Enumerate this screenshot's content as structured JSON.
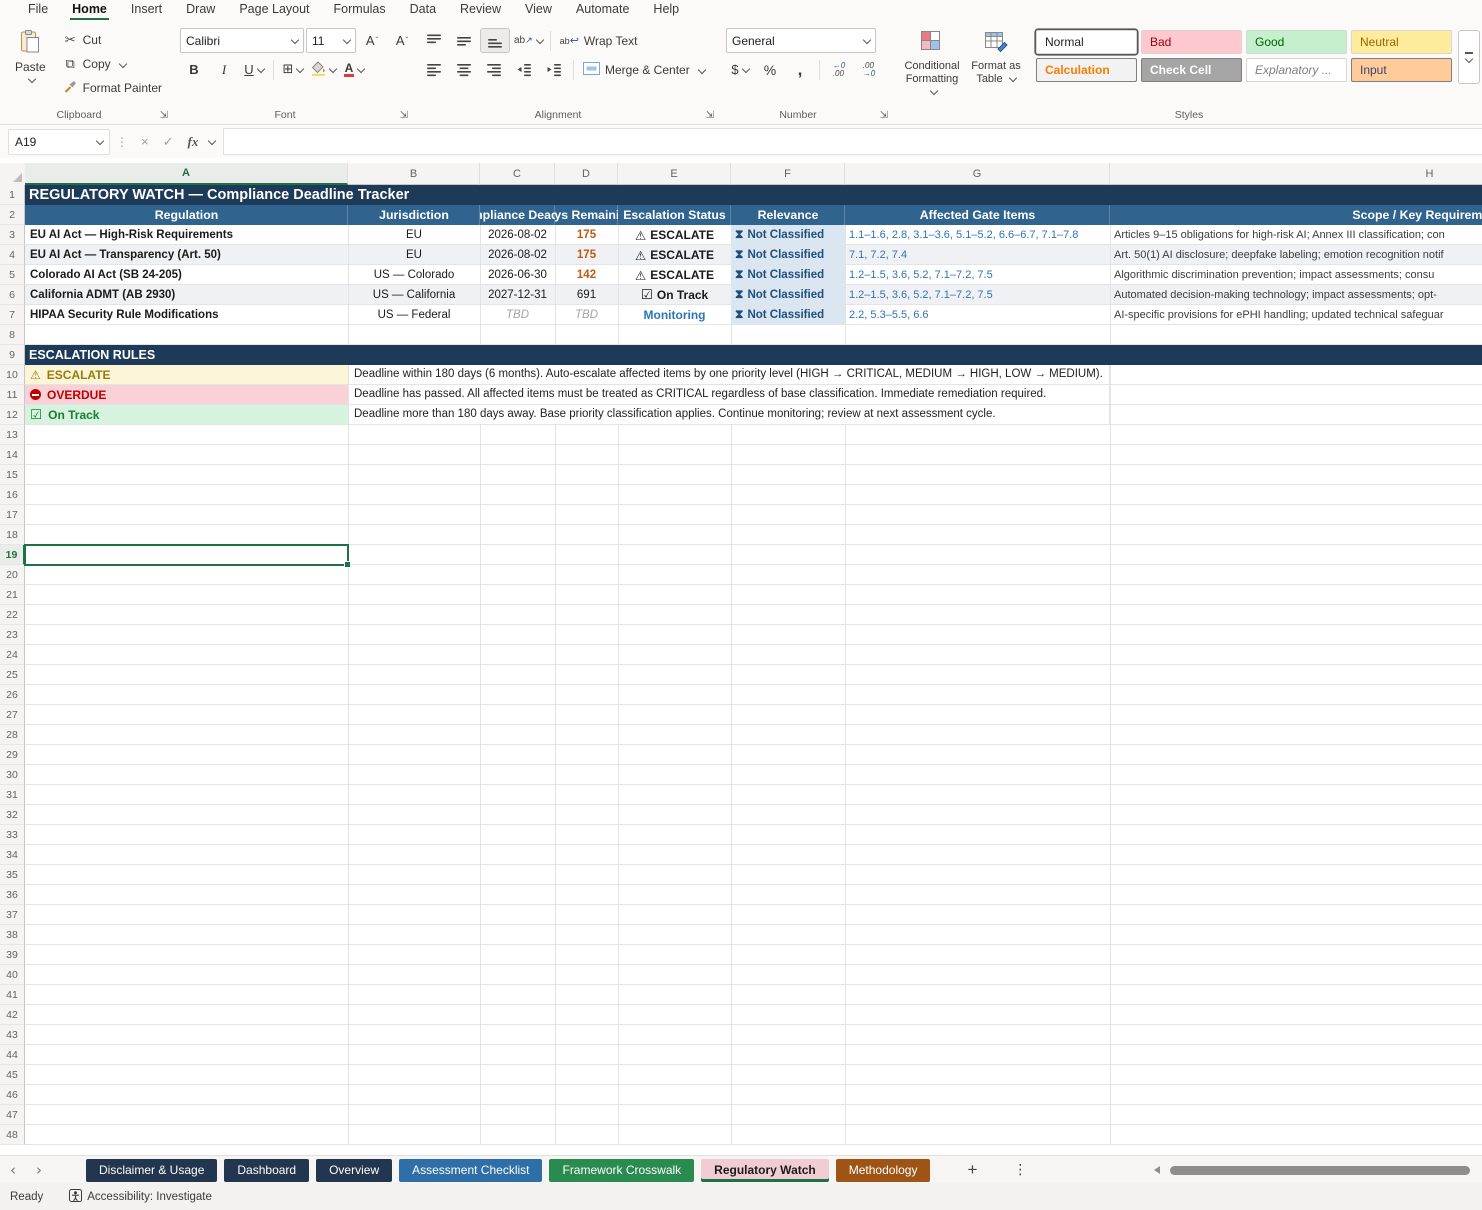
{
  "menu": {
    "items": [
      "File",
      "Home",
      "Insert",
      "Draw",
      "Page Layout",
      "Formulas",
      "Data",
      "Review",
      "View",
      "Automate",
      "Help"
    ],
    "active": "Home"
  },
  "ribbon": {
    "clipboard": {
      "group": "Clipboard",
      "paste": "Paste",
      "cut": "Cut",
      "copy": "Copy",
      "format_painter": "Format Painter"
    },
    "font": {
      "group": "Font",
      "family": "Calibri",
      "size": "11",
      "bold": "B",
      "italic": "I",
      "underline": "U",
      "grow": "A",
      "shrink": "A"
    },
    "alignment": {
      "group": "Alignment",
      "wrap_text": "Wrap Text",
      "merge_center": "Merge & Center",
      "wrap_ab": "ab",
      "orient_ab": "ab"
    },
    "number": {
      "group": "Number",
      "format": "General",
      "dollar": "$",
      "percent": "%",
      "comma": ",",
      "inc_top": "←0",
      "inc_bot": ".00",
      "dec_top": ".00",
      "dec_bot": "→0"
    },
    "styles": {
      "group": "Styles",
      "conditional_line1": "Conditional",
      "conditional_line2": "Formatting",
      "format_table_line1": "Format as",
      "format_table_line2": "Table",
      "gallery": [
        {
          "label": "Normal",
          "bg": "#FFFFFF",
          "fg": "#1F1F1F",
          "selected": true
        },
        {
          "label": "Bad",
          "bg": "#FFC7CE",
          "fg": "#9C0006"
        },
        {
          "label": "Good",
          "bg": "#C6EFCE",
          "fg": "#006100"
        },
        {
          "label": "Neutral",
          "bg": "#FFEB9C",
          "fg": "#9C6500"
        },
        {
          "label": "Calculation",
          "bg": "#F2F2F2",
          "fg": "#FA7D00",
          "bold": true,
          "bordered": true
        },
        {
          "label": "Check Cell",
          "bg": "#A5A5A5",
          "fg": "#FFFFFF",
          "bold": true,
          "bordered": true
        },
        {
          "label": "Explanatory ...",
          "bg": "#FFFFFF",
          "fg": "#7F7F7F",
          "italic": true
        },
        {
          "label": "Input",
          "bg": "#FFCC99",
          "fg": "#3F3F76",
          "bordered": true
        }
      ]
    }
  },
  "formula_bar": {
    "name_box": "A19",
    "formula": "",
    "cancel": "×",
    "enter": "✓",
    "fx": "fx"
  },
  "sheet": {
    "title": "REGULATORY WATCH — Compliance Deadline Tracker",
    "columns": [
      "A",
      "B",
      "C",
      "D",
      "E",
      "F",
      "G",
      "H"
    ],
    "headers": [
      "Regulation",
      "Jurisdiction",
      "Compliance Deadline",
      "Days Remaining",
      "Escalation Status",
      "Relevance",
      "Affected Gate Items",
      "Scope / Key Requirements"
    ],
    "selected_column": "A",
    "selected_row": 19,
    "visible_rows": 48,
    "rows": [
      {
        "regulation": "EU AI Act — High-Risk Requirements",
        "jurisdiction": "EU",
        "deadline": "2026-08-02",
        "days": "175",
        "days_state": "warn",
        "status": "ESCALATE",
        "status_state": "escalate",
        "relevance": "Not Classified",
        "gates": "1.1–1.6, 2.8, 3.1–3.6, 5.1–5.2, 6.6–6.7, 7.1–7.8",
        "scope": "Articles 9–15 obligations for high-risk AI; Annex III classification; con"
      },
      {
        "regulation": "EU AI Act — Transparency (Art. 50)",
        "jurisdiction": "EU",
        "deadline": "2026-08-02",
        "days": "175",
        "days_state": "warn",
        "status": "ESCALATE",
        "status_state": "escalate",
        "relevance": "Not Classified",
        "gates": "7.1, 7.2, 7.4",
        "scope": "Art. 50(1) AI disclosure; deepfake labeling; emotion recognition notif"
      },
      {
        "regulation": "Colorado AI Act (SB 24-205)",
        "jurisdiction": "US — Colorado",
        "deadline": "2026-06-30",
        "days": "142",
        "days_state": "warn",
        "status": "ESCALATE",
        "status_state": "escalate",
        "relevance": "Not Classified",
        "gates": "1.2–1.5, 3.6, 5.2, 7.1–7.2, 7.5",
        "scope": "Algorithmic discrimination prevention; impact assessments; consu"
      },
      {
        "regulation": "California ADMT (AB 2930)",
        "jurisdiction": "US — California",
        "deadline": "2027-12-31",
        "days": "691",
        "days_state": "normal",
        "status": "On Track",
        "status_state": "ontrack",
        "relevance": "Not Classified",
        "gates": "1.2–1.5, 3.6, 5.2, 7.1–7.2, 7.5",
        "scope": "Automated decision-making technology; impact assessments; opt-"
      },
      {
        "regulation": "HIPAA Security Rule Modifications",
        "jurisdiction": "US — Federal",
        "deadline": "TBD",
        "deadline_state": "tbd",
        "days": "TBD",
        "days_state": "tbd",
        "status": "Monitoring",
        "status_state": "monitoring",
        "relevance": "Not Classified",
        "gates": "2.2, 5.3–5.5, 6.6",
        "scope": "AI-specific provisions for ePHI handling; updated technical safeguar"
      }
    ],
    "rules_title": "ESCALATION RULES",
    "rules": [
      {
        "label": "ESCALATE",
        "state": "escalate",
        "desc": "Deadline within 180 days (6 months). Auto-escalate affected items by one priority level (HIGH → CRITICAL, MEDIUM → HIGH, LOW → MEDIUM)."
      },
      {
        "label": "OVERDUE",
        "state": "overdue",
        "desc": "Deadline has passed. All affected items must be treated as CRITICAL regardless of base classification. Immediate remediation required."
      },
      {
        "label": "On Track",
        "state": "ontrack",
        "desc": "Deadline more than 180 days away. Base priority classification applies. Continue monitoring; review at next assessment cycle."
      }
    ]
  },
  "tabs": {
    "items": [
      {
        "label": "Disclaimer & Usage",
        "bg": "#22364F",
        "fg": "#FFFFFF"
      },
      {
        "label": "Dashboard",
        "bg": "#22364F",
        "fg": "#FFFFFF"
      },
      {
        "label": "Overview",
        "bg": "#22364F",
        "fg": "#FFFFFF"
      },
      {
        "label": "Assessment Checklist",
        "bg": "#2F6FA8",
        "fg": "#FFFFFF"
      },
      {
        "label": "Framework Crosswalk",
        "bg": "#2A8B50",
        "fg": "#FFFFFF"
      },
      {
        "label": "Regulatory Watch",
        "bg": "#F2CCD4",
        "fg": "#1B1B1B",
        "active": true
      },
      {
        "label": "Methodology",
        "bg": "#9E5414",
        "fg": "#FFFFFF"
      }
    ]
  },
  "status_bar": {
    "mode": "Ready",
    "accessibility": "Accessibility: Investigate"
  },
  "icons": {
    "scissors": "✂",
    "copy": "⧉",
    "launcher": "⇲",
    "warning": "⚠",
    "check": "☑",
    "hourglass": "⧗",
    "wrap_return": "↩",
    "orientation_arrow": "↗",
    "borders": "⊞",
    "kebab": "⋮",
    "plus": "+",
    "nav_left": "‹",
    "nav_right": "›"
  },
  "colors": {
    "accent_green": "#1E7145",
    "title_navy": "#1D3A58",
    "header_blue": "#30648F",
    "relevance_bg": "#DAE7F3",
    "relevance_fg": "#1F4E79",
    "warn_orange": "#C05A10",
    "monitoring_blue": "#2E75B6"
  }
}
